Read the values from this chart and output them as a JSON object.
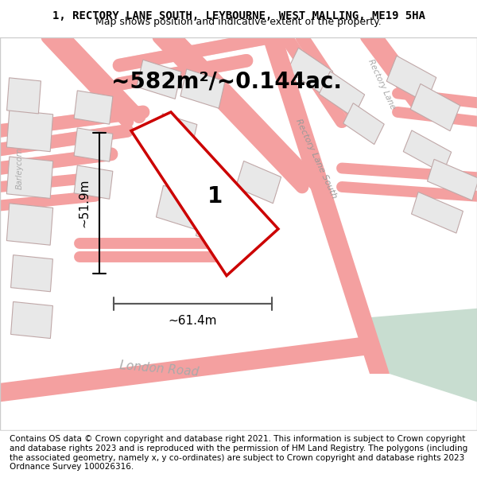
{
  "title_line1": "1, RECTORY LANE SOUTH, LEYBOURNE, WEST MALLING, ME19 5HA",
  "title_line2": "Map shows position and indicative extent of the property.",
  "area_text": "~582m²/~0.144ac.",
  "dim_horizontal": "~61.4m",
  "dim_vertical": "~51.9m",
  "property_label": "1",
  "footer_text": "Contains OS data © Crown copyright and database right 2021. This information is subject to Crown copyright and database rights 2023 and is reproduced with the permission of HM Land Registry. The polygons (including the associated geometry, namely x, y co-ordinates) are subject to Crown copyright and database rights 2023 Ordnance Survey 100026316.",
  "bg_color": "#f5f0f0",
  "map_bg": "#ffffff",
  "road_color": "#f4a0a0",
  "road_outline": "#e08080",
  "building_fill": "#e8e8e8",
  "building_outline": "#c8b8b8",
  "property_fill": "#ffffff",
  "property_outline": "#cc0000",
  "green_fill": "#c8ddd0",
  "road_label_color": "#aaaaaa",
  "title_fontsize": 10,
  "subtitle_fontsize": 9,
  "area_fontsize": 20,
  "dim_fontsize": 11,
  "footer_fontsize": 7.5
}
